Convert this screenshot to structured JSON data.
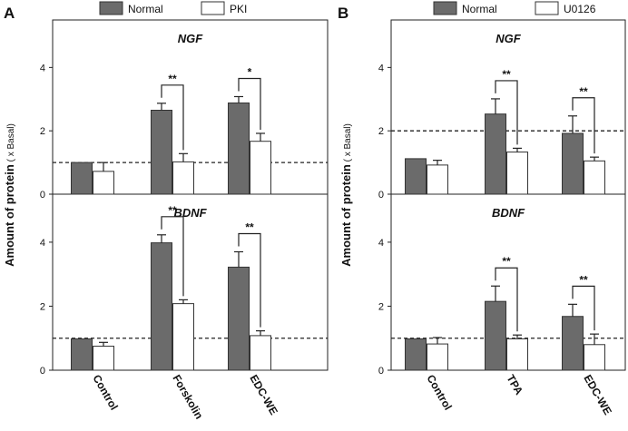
{
  "chart_data": [
    {
      "type": "bar",
      "panel": "A",
      "legend": [
        "Normal",
        "PKI"
      ],
      "colors": {
        "Normal": "#6b6b6b",
        "Treatment": "#ffffff"
      },
      "categories": [
        "Control",
        "Forskolin",
        "EDC-WE"
      ],
      "ylabel": "Amount of protein",
      "yunit": "( x Basal)",
      "subplots": [
        {
          "title": "NGF",
          "ylim": [
            0,
            5.5
          ],
          "yticks": [
            "0",
            "2",
            "4"
          ],
          "baseline": 1,
          "series": [
            {
              "name": "Normal",
              "values": [
                1.0,
                2.65,
                2.88
              ],
              "errors": [
                0.0,
                0.22,
                0.2
              ]
            },
            {
              "name": "PKI",
              "values": [
                0.72,
                1.02,
                1.67
              ],
              "errors": [
                0.28,
                0.26,
                0.25
              ]
            }
          ],
          "significance": [
            null,
            "**",
            "*"
          ]
        },
        {
          "title": "BDNF",
          "ylim": [
            0,
            5.5
          ],
          "yticks": [
            "0",
            "2",
            "4"
          ],
          "baseline": 1,
          "series": [
            {
              "name": "Normal",
              "values": [
                0.98,
                3.98,
                3.22
              ],
              "errors": [
                0.0,
                0.25,
                0.48
              ]
            },
            {
              "name": "PKI",
              "values": [
                0.75,
                2.08,
                1.08
              ],
              "errors": [
                0.12,
                0.12,
                0.15
              ]
            }
          ],
          "significance": [
            null,
            "**",
            "**"
          ]
        }
      ]
    },
    {
      "type": "bar",
      "panel": "B",
      "legend": [
        "Normal",
        "U0126"
      ],
      "colors": {
        "Normal": "#6b6b6b",
        "Treatment": "#ffffff"
      },
      "categories": [
        "Control",
        "TPA",
        "EDC-WE"
      ],
      "ylabel": "Amount of protein",
      "yunit": "( x Basal)",
      "subplots": [
        {
          "title": "NGF",
          "ylim": [
            0,
            5.5
          ],
          "yticks": [
            "0",
            "2",
            "4"
          ],
          "baseline": 2,
          "series": [
            {
              "name": "Normal",
              "values": [
                1.12,
                2.53,
                1.92
              ],
              "errors": [
                0.0,
                0.48,
                0.55
              ]
            },
            {
              "name": "U0126",
              "values": [
                0.92,
                1.33,
                1.05
              ],
              "errors": [
                0.15,
                0.12,
                0.12
              ]
            }
          ],
          "significance": [
            null,
            "**",
            "**"
          ]
        },
        {
          "title": "BDNF",
          "ylim": [
            0,
            5.5
          ],
          "yticks": [
            "0",
            "2",
            "4"
          ],
          "baseline": 1,
          "series": [
            {
              "name": "Normal",
              "values": [
                0.98,
                2.15,
                1.68
              ],
              "errors": [
                0.0,
                0.48,
                0.38
              ]
            },
            {
              "name": "U0126",
              "values": [
                0.82,
                0.98,
                0.8
              ],
              "errors": [
                0.2,
                0.12,
                0.33
              ]
            }
          ],
          "significance": [
            null,
            "**",
            "**"
          ]
        }
      ]
    }
  ]
}
